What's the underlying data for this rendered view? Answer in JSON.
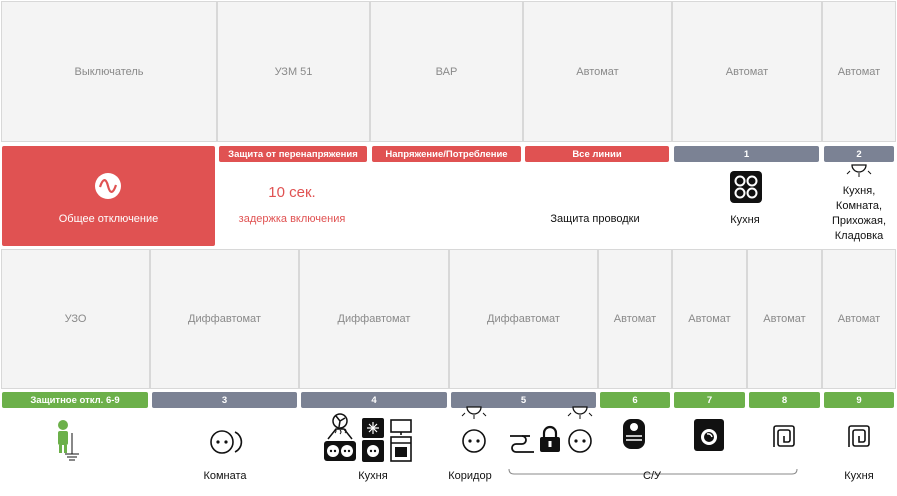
{
  "top_row": {
    "modules": [
      "Выключатель",
      "УЗМ 51",
      "ВАР",
      "Автомат",
      "Автомат",
      "Автомат"
    ],
    "bars": [
      "Защита от перенапряжения",
      "Напряжение/Потребление",
      "Все линии",
      "1",
      "2"
    ],
    "main_switch_label": "Общее отключение",
    "delay_value": "10 сек.",
    "delay_label": "задержка включения",
    "wiring_label": "Защита проводки",
    "line1_label": "Кухня",
    "line2_label": "Кухня,\nКомната,\nПрихожая,\nКладовка"
  },
  "bottom_row": {
    "modules": [
      "УЗО",
      "Диффавтомат",
      "Диффавтомат",
      "Диффавтомат",
      "Автомат",
      "Автомат",
      "Автомат",
      "Автомат"
    ],
    "bars": [
      "Защитное откл. 6-9",
      "3",
      "4",
      "5",
      "6",
      "7",
      "8",
      "9"
    ],
    "labels": {
      "komnata": "Комната",
      "kuhnya": "Кухня",
      "koridor": "Коридор",
      "su": "С/У",
      "kuhnya2": "Кухня"
    }
  },
  "icons": {
    "main_switch": "sine-wave-icon",
    "hob": "hob-icon",
    "lamp": "ceiling-lamp-icon",
    "ground": "ground-person-icon",
    "socket": "socket-icon",
    "fridge": "fridge-icon",
    "oven": "oven-icon",
    "hood": "hood-fan-icon",
    "water_heater": "water-heater-icon",
    "washer": "washing-machine-icon",
    "floor_heat": "floor-heating-icon",
    "lock": "lock-icon"
  },
  "colors": {
    "red": "#e05252",
    "gray": "#7b8294",
    "green": "#6cb04a"
  }
}
